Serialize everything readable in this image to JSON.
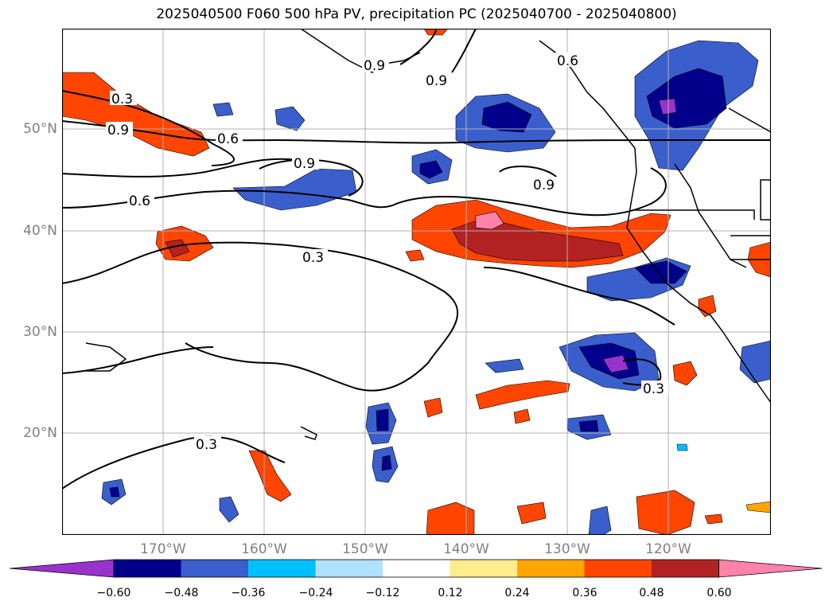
{
  "title": "2025040500 F060 500 hPa PV, precipitation PC (2025040700 - 2025040800)",
  "lat_labels": [
    "50°N",
    "40°N",
    "30°N",
    "20°N"
  ],
  "lon_labels": [
    "170°W",
    "160°W",
    "150°W",
    "140°W",
    "130°W",
    "120°W"
  ],
  "contour_labels": [
    "0.3",
    "0.9",
    "0.6",
    "0.9",
    "0.9",
    "0.6",
    "0.9",
    "0.9",
    "0.6",
    "0.3",
    "0.3",
    "0.3"
  ],
  "colorbar": {
    "ticks": [
      "−0.60",
      "−0.48",
      "−0.36",
      "−0.24",
      "−0.12",
      "0.12",
      "0.24",
      "0.36",
      "0.48",
      "0.60"
    ],
    "colors": [
      "#9932CC",
      "#00008B",
      "#3A5FCD",
      "#00BFFF",
      "#B0E2FF",
      "#FFFFFF",
      "#FFEC8B",
      "#FFA500",
      "#FF4500",
      "#B22222",
      "#FF82AB"
    ]
  }
}
